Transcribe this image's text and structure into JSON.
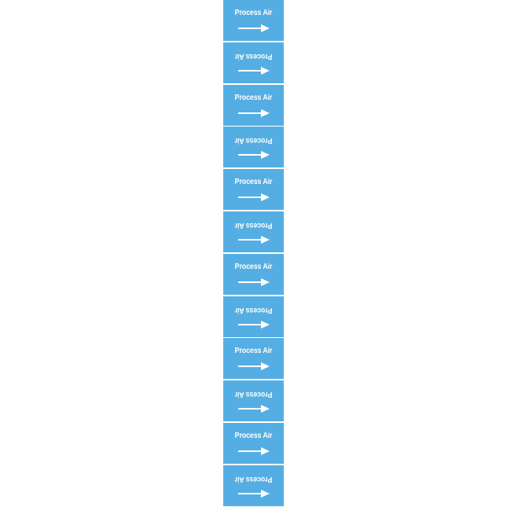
{
  "background_color": "#ffffff",
  "marker": {
    "color": "#55aee3",
    "text_color": "#ffffff",
    "segments": [
      {
        "label": "Process Air",
        "text_upside_down": false,
        "arrow": "right-arrow-icon"
      },
      {
        "label": "Process Air",
        "text_upside_down": true,
        "arrow": "right-arrow-icon"
      },
      {
        "label": "Process Air",
        "text_upside_down": false,
        "arrow": "right-arrow-icon"
      },
      {
        "label": "Process Air",
        "text_upside_down": true,
        "arrow": "right-arrow-icon"
      },
      {
        "label": "Process Air",
        "text_upside_down": false,
        "arrow": "right-arrow-icon"
      },
      {
        "label": "Process Air",
        "text_upside_down": true,
        "arrow": "right-arrow-icon"
      },
      {
        "label": "Process Air",
        "text_upside_down": false,
        "arrow": "right-arrow-icon"
      },
      {
        "label": "Process Air",
        "text_upside_down": true,
        "arrow": "right-arrow-icon"
      },
      {
        "label": "Process Air",
        "text_upside_down": false,
        "arrow": "right-arrow-icon"
      },
      {
        "label": "Process Air",
        "text_upside_down": true,
        "arrow": "right-arrow-icon"
      },
      {
        "label": "Process Air",
        "text_upside_down": false,
        "arrow": "right-arrow-icon"
      },
      {
        "label": "Process Air",
        "text_upside_down": true,
        "arrow": "right-arrow-icon"
      }
    ]
  }
}
